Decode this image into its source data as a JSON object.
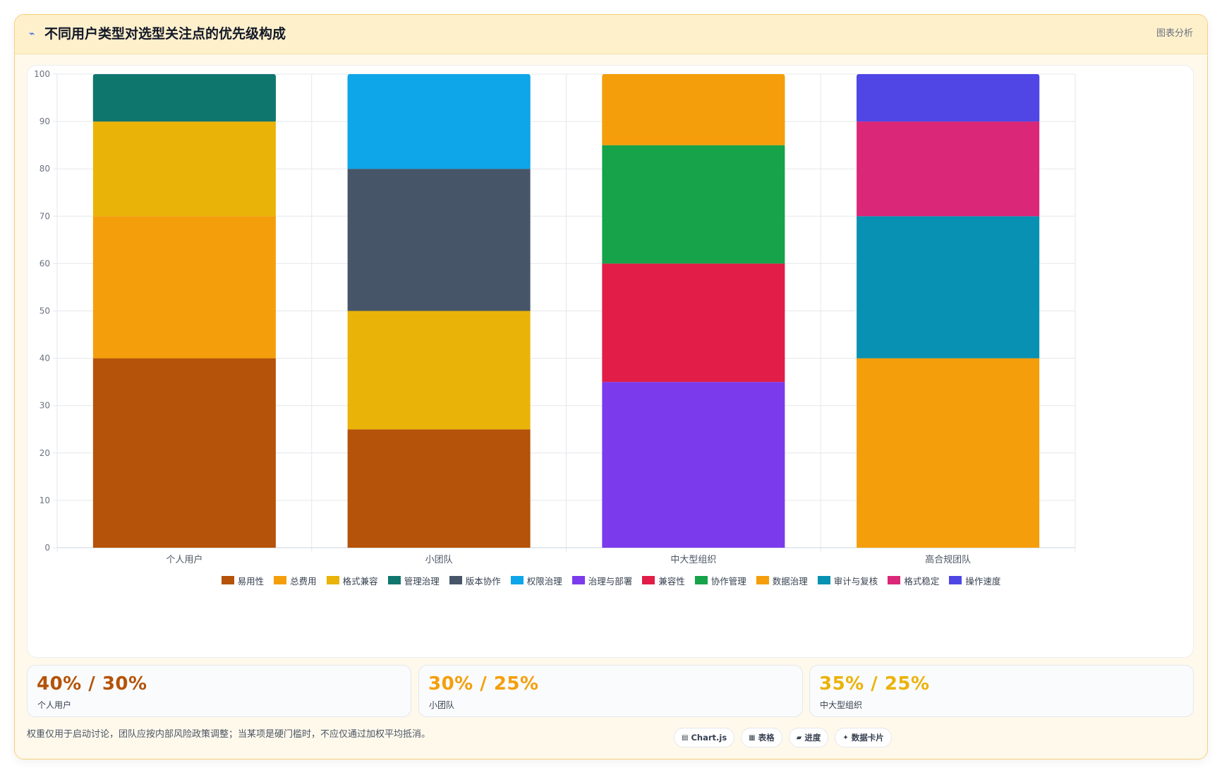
{
  "header": {
    "icon": "chart-line-icon",
    "title": "不同用户类型对选型关注点的优先级构成",
    "tag": "图表分析"
  },
  "chart_data": {
    "type": "bar",
    "stacked": true,
    "categories": [
      "个人用户",
      "小团队",
      "中大型组织",
      "高合规团队"
    ],
    "ylim": [
      0,
      100
    ],
    "yticks": [
      0,
      10,
      20,
      30,
      40,
      50,
      60,
      70,
      80,
      90,
      100
    ],
    "grid": true,
    "legend_position": "bottom",
    "series": [
      {
        "name": "易用性",
        "color": "#b45309",
        "values": [
          40,
          25,
          0,
          0
        ]
      },
      {
        "name": "总费用",
        "color": "#f59e0b",
        "values": [
          30,
          0,
          0,
          0
        ]
      },
      {
        "name": "格式兼容",
        "color": "#eab308",
        "values": [
          20,
          25,
          0,
          0
        ]
      },
      {
        "name": "管理治理",
        "color": "#0f766e",
        "values": [
          10,
          0,
          0,
          0
        ]
      },
      {
        "name": "版本协作",
        "color": "#475569",
        "values": [
          0,
          30,
          0,
          0
        ]
      },
      {
        "name": "权限治理",
        "color": "#0ea5e9",
        "values": [
          0,
          20,
          0,
          0
        ]
      },
      {
        "name": "治理与部署",
        "color": "#7c3aed",
        "values": [
          0,
          0,
          35,
          0
        ]
      },
      {
        "name": "兼容性",
        "color": "#e11d48",
        "values": [
          0,
          0,
          25,
          0
        ]
      },
      {
        "name": "协作管理",
        "color": "#16a34a",
        "values": [
          0,
          0,
          25,
          0
        ]
      },
      {
        "name": "数据治理",
        "color": "#f59e0b",
        "values": [
          0,
          0,
          15,
          40
        ]
      },
      {
        "name": "审计与复核",
        "color": "#0891b2",
        "values": [
          0,
          0,
          0,
          30
        ]
      },
      {
        "name": "格式稳定",
        "color": "#db2777",
        "values": [
          0,
          0,
          0,
          20
        ]
      },
      {
        "name": "操作速度",
        "color": "#4f46e5",
        "values": [
          0,
          0,
          0,
          10
        ]
      }
    ]
  },
  "stats": [
    {
      "value": "40% / 30%",
      "label": "个人用户",
      "color": "#b45309"
    },
    {
      "value": "30% / 25%",
      "label": "小团队",
      "color": "#f59e0b"
    },
    {
      "value": "35% / 25%",
      "label": "中大型组织",
      "color": "#eab308"
    }
  ],
  "footer": {
    "note": "权重仅用于启动讨论，团队应按内部风险政策调整；当某项是硬门槛时，不应仅通过加权平均抵消。",
    "chips": [
      {
        "icon": "chart-icon",
        "glyph": "▤",
        "label": "Chart.js"
      },
      {
        "icon": "table-icon",
        "glyph": "▦",
        "label": "表格"
      },
      {
        "icon": "progress-icon",
        "glyph": "▰",
        "label": "进度"
      },
      {
        "icon": "sparkle-icon",
        "glyph": "✦",
        "label": "数据卡片"
      }
    ]
  }
}
